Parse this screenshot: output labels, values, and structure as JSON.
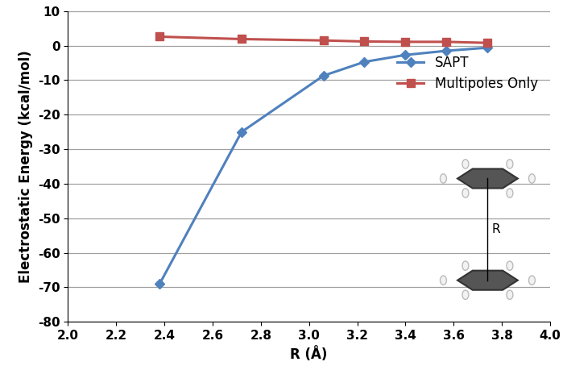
{
  "chart_data": {
    "type": "line",
    "x_label": "R (Å)",
    "y_label": "Electrostatic Energy (kcal/mol)",
    "x": [
      2.38,
      2.72,
      3.06,
      3.23,
      3.4,
      3.57,
      3.74
    ],
    "series": [
      {
        "name": "SAPT",
        "color": "#4F81BD",
        "marker": "diamond",
        "line_style": "solid",
        "values": [
          -69.0,
          -25.0,
          -8.7,
          -4.7,
          -2.7,
          -1.5,
          -0.6
        ]
      },
      {
        "name": "Multipoles Only",
        "color": "#C0504D",
        "marker": "square",
        "line_style": "solid",
        "values": [
          2.6,
          1.9,
          1.5,
          1.2,
          1.1,
          1.1,
          0.8
        ]
      }
    ],
    "xlim": [
      2.0,
      4.0
    ],
    "xticks": [
      2.0,
      2.2,
      2.4,
      2.6,
      2.8,
      3.0,
      3.2,
      3.4,
      3.6,
      3.8,
      4.0
    ],
    "ylim": [
      -80,
      10
    ],
    "yticks": [
      -80,
      -70,
      -60,
      -50,
      -40,
      -30,
      -20,
      -10,
      0,
      10
    ],
    "grid": true,
    "legend": "right",
    "annotations": [
      "R"
    ]
  }
}
